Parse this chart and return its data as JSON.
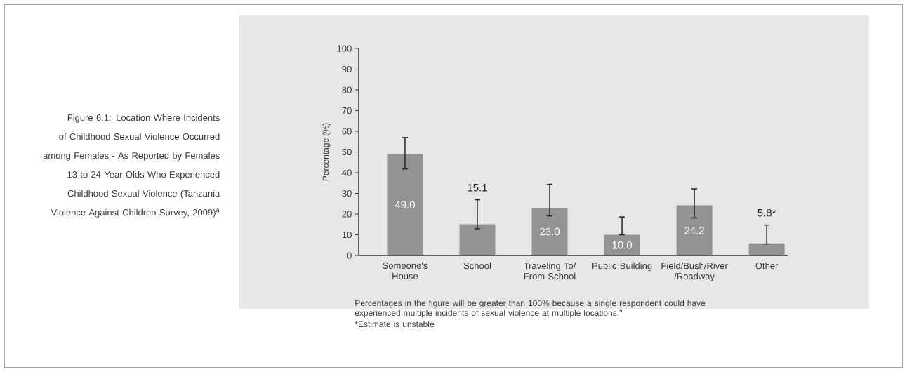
{
  "chart_data": {
    "type": "bar",
    "title": "Figure 6.1: Location Where Incidents of Childhood Sexual Violence Occurred among Females - As Reported by Females 13 to 24 Year Olds Who Experienced Childhood Sexual Violence (Tanzania Violence Against Children Survey, 2009)$^{a}$",
    "ylabel": "Percentage (%)",
    "categories": [
      "Someone's House",
      "School",
      "Traveling To/ From School",
      "Public Building",
      "Field/Bush/River /Roadway",
      "Other"
    ],
    "values": [
      49.0,
      15.1,
      23.0,
      10.0,
      24.2,
      5.8
    ],
    "color": "#939393",
    "errors": [
      [
        41.8,
        57.0
      ],
      [
        12.9,
        26.9
      ],
      [
        19.1,
        34.4
      ],
      [
        10.0,
        18.6
      ],
      [
        18.1,
        32.2
      ],
      [
        5.5,
        14.7
      ]
    ],
    "value_labels": [
      "49.0",
      "15.1",
      "23.0",
      "10.0",
      "24.2",
      "5.8*"
    ],
    "ylim": [
      0,
      100
    ],
    "yticks": [
      0,
      10,
      20,
      30,
      40,
      50,
      60,
      70,
      80,
      90,
      100
    ],
    "annotations": [
      "Percentages in the figure will be greater than 100% because a single respondent could have experienced multiple incidents of sexual violence at multiple locations.$^{a}$",
      "*Estimate is unstable"
    ]
  }
}
